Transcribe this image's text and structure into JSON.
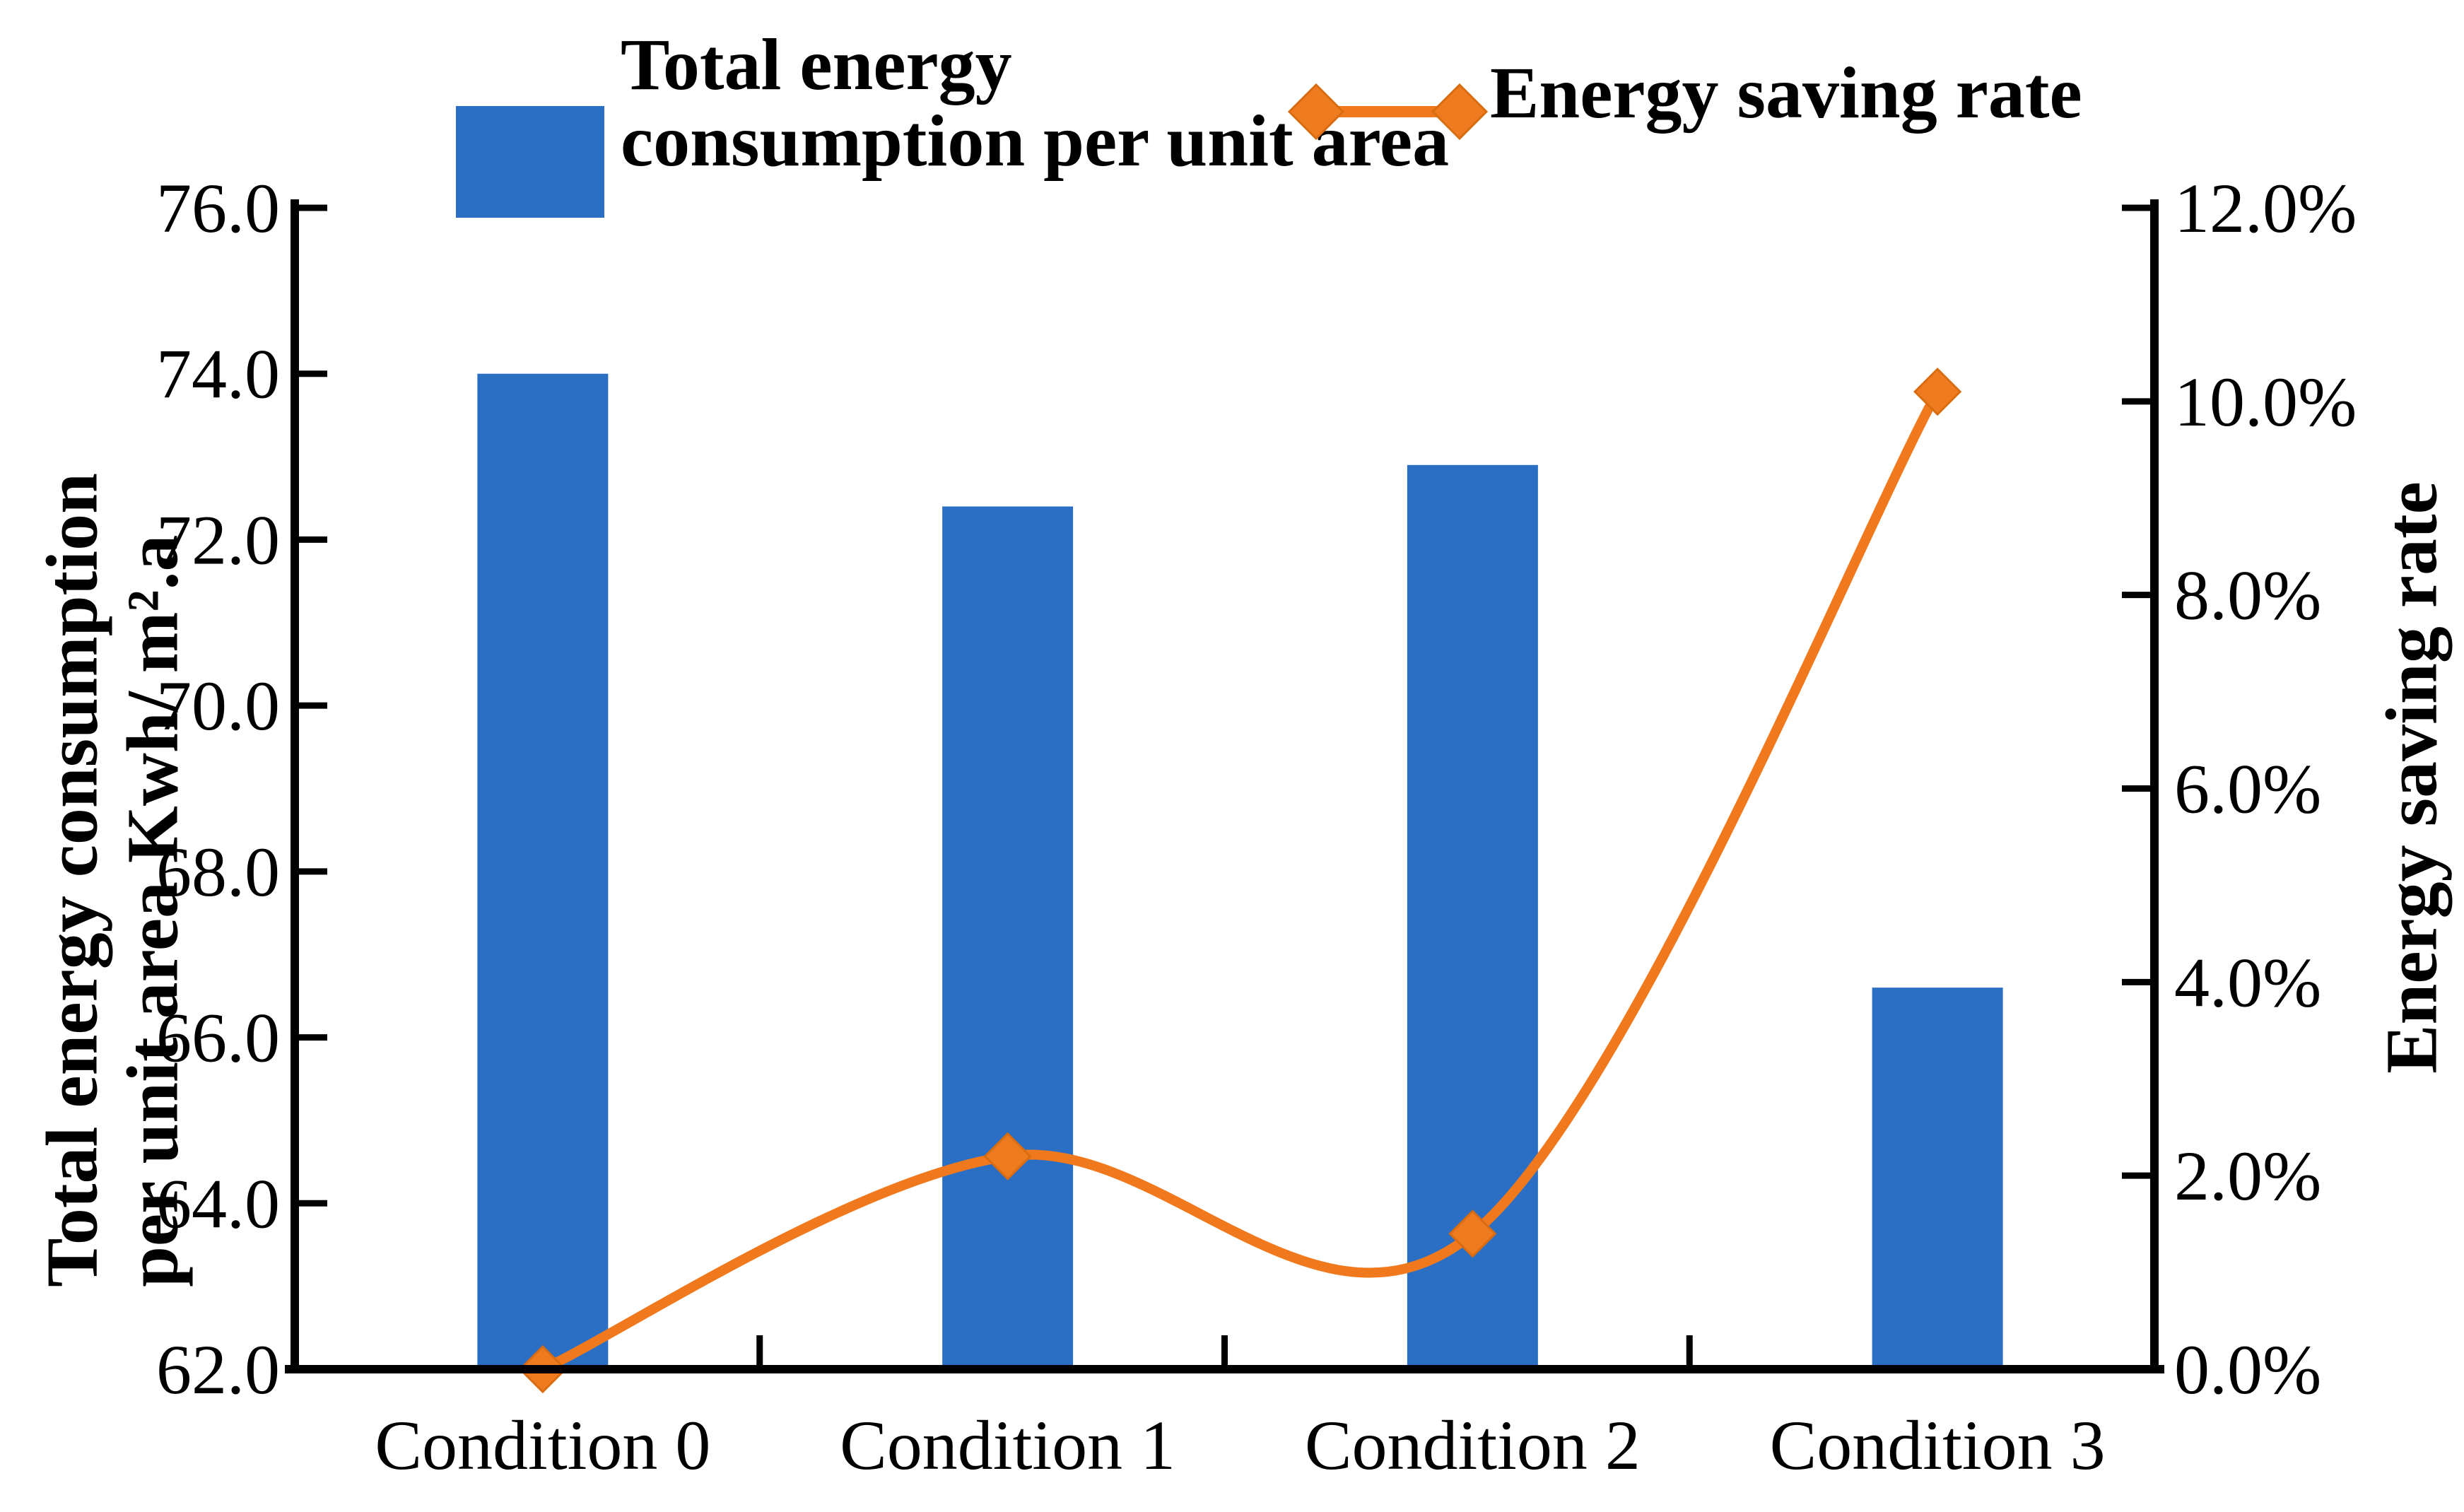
{
  "figure": {
    "background": "#ffffff",
    "legend": {
      "bar": {
        "lines": [
          "Total energy",
          "consumption per unit area"
        ]
      },
      "line": {
        "label": "Energy saving rate"
      }
    },
    "left_axis": {
      "title_lines": [
        "Total energy consumption",
        "per unit area Kwh/ m².a"
      ],
      "min": 62.0,
      "max": 76.0,
      "step": 2.0,
      "tick_labels": [
        "62.0",
        "64.0",
        "66.0",
        "68.0",
        "70.0",
        "72.0",
        "74.0",
        "76.0"
      ]
    },
    "right_axis": {
      "title": "Energy saving rate",
      "min": 0.0,
      "max": 12.0,
      "step": 2.0,
      "tick_labels": [
        "0.0%",
        "2.0%",
        "4.0%",
        "6.0%",
        "8.0%",
        "10.0%",
        "12.0%"
      ]
    },
    "colors": {
      "bar": "#2b6fc4",
      "line": "#f0791d",
      "marker": "#ef7b20",
      "axis": "#000000"
    }
  },
  "chart_data": [
    {
      "type": "bar",
      "name": "Total energy consumption per unit area",
      "axis": "left",
      "categories": [
        "Condition 0",
        "Condition 1",
        "Condition 2",
        "Condition 3"
      ],
      "values": [
        74.0,
        72.4,
        72.9,
        66.6
      ],
      "ylabel": "Total energy consumption per unit area Kwh/ m².a",
      "ylim": [
        62.0,
        76.0
      ],
      "grid": false,
      "color": "#2b6fc4"
    },
    {
      "type": "line",
      "name": "Energy saving rate",
      "axis": "right",
      "categories": [
        "Condition 0",
        "Condition 1",
        "Condition 2",
        "Condition 3"
      ],
      "values": [
        0.0,
        2.2,
        1.4,
        10.1
      ],
      "unit": "%",
      "ylabel": "Energy saving rate",
      "ylim": [
        0.0,
        12.0
      ],
      "smooth": true,
      "marker": "diamond",
      "color": "#f0791d",
      "legend_position": "top"
    }
  ]
}
